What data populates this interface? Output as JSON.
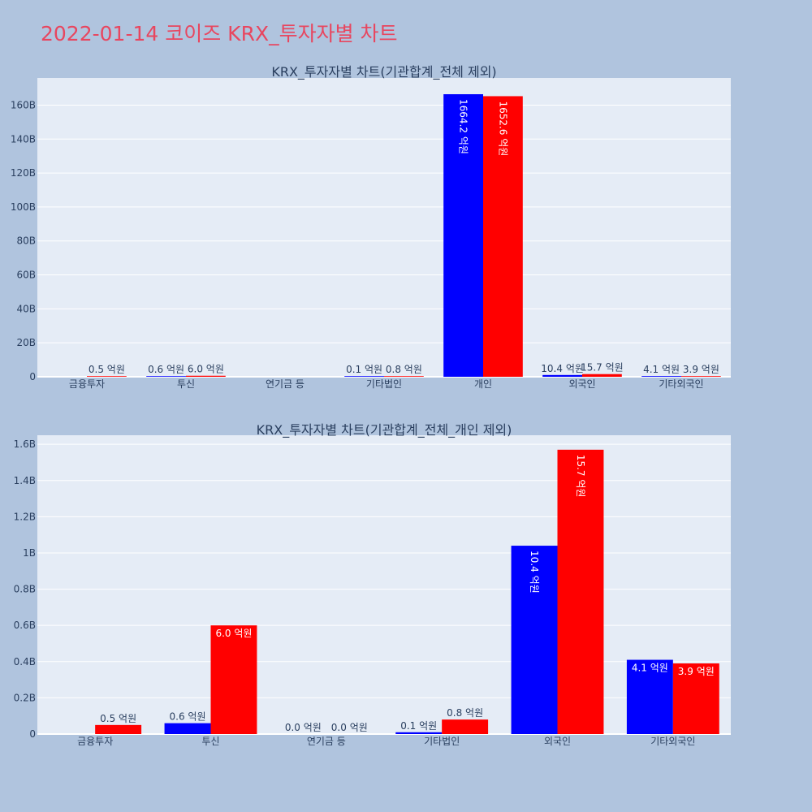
{
  "title": "2022-01-14 코이즈 KRX_투자자별 차트",
  "colors": {
    "buy": "#0000ff",
    "sell": "#ff0000",
    "plot_bg": "#e5ecf6",
    "paper_bg": "#b0c4de",
    "title": "#e8465f"
  },
  "chart_data": [
    {
      "type": "bar",
      "title": "KRX_투자자별 차트(기관합계_전체 제외)",
      "categories": [
        "금융투자",
        "투신",
        "연기금 등",
        "기타법인",
        "개인",
        "외국인",
        "기타외국인"
      ],
      "series": [
        {
          "values": [
            0.0,
            0.06,
            0.0,
            0.01,
            166.42,
            1.04,
            0.41
          ],
          "labels": [
            "",
            "0.6 억원",
            "",
            "0.1 억원",
            "1664.2 억원",
            "10.4 억원",
            "4.1 억원"
          ]
        },
        {
          "values": [
            0.05,
            0.6,
            0.0,
            0.08,
            165.26,
            1.57,
            0.39
          ],
          "labels": [
            "0.5 억원",
            "6.0 억원",
            "",
            "0.8 억원",
            "1652.6 억원",
            "15.7 억원",
            "3.9 억원"
          ]
        }
      ],
      "y_unit": "B",
      "ylim": [
        0,
        176
      ],
      "y_ticks": [
        0,
        20,
        40,
        60,
        80,
        100,
        120,
        140,
        160
      ],
      "y_tick_labels": [
        "0",
        "20B",
        "40B",
        "60B",
        "80B",
        "100B",
        "120B",
        "140B",
        "160B"
      ],
      "grid": true,
      "legend": "none"
    },
    {
      "type": "bar",
      "title": "KRX_투자자별 차트(기관합계_전체_개인 제외)",
      "categories": [
        "금융투자",
        "투신",
        "연기금 등",
        "기타법인",
        "외국인",
        "기타외국인"
      ],
      "series": [
        {
          "values": [
            0.0,
            0.06,
            0.0,
            0.01,
            1.04,
            0.41
          ],
          "labels": [
            "",
            "0.6 억원",
            "0.0 억원",
            "0.1 억원",
            "10.4 억원",
            "4.1 억원"
          ]
        },
        {
          "values": [
            0.05,
            0.6,
            0.0,
            0.08,
            1.57,
            0.39
          ],
          "labels": [
            "0.5 억원",
            "6.0 억원",
            "0.0 억원",
            "0.8 억원",
            "15.7 억원",
            "3.9 억원"
          ]
        }
      ],
      "y_unit": "B",
      "ylim": [
        0,
        1.65
      ],
      "y_ticks": [
        0,
        0.2,
        0.4,
        0.6,
        0.8,
        1.0,
        1.2,
        1.4,
        1.6
      ],
      "y_tick_labels": [
        "0",
        "0.2B",
        "0.4B",
        "0.6B",
        "0.8B",
        "1B",
        "1.2B",
        "1.4B",
        "1.6B"
      ],
      "grid": true,
      "legend": "none"
    }
  ]
}
